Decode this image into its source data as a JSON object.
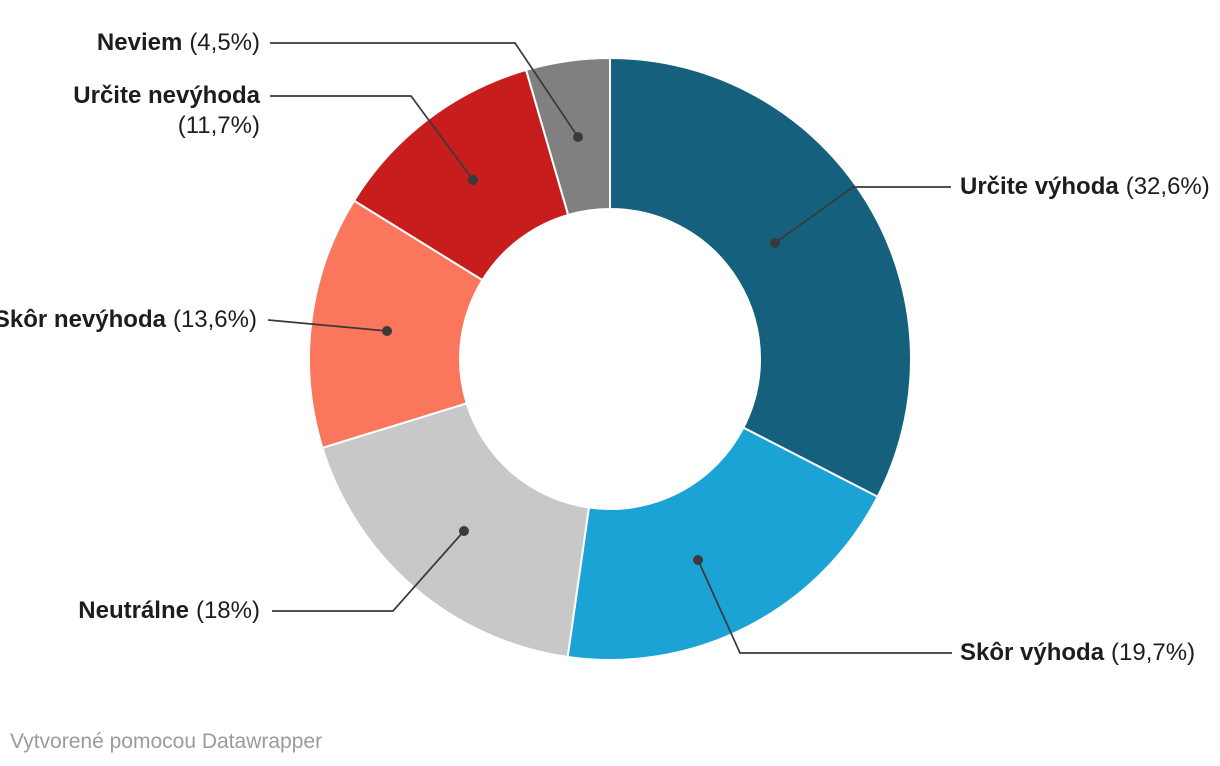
{
  "chart_data": {
    "type": "pie",
    "subtype": "donut",
    "direction": "clockwise",
    "start_angle_deg": 0,
    "inner_radius_ratio": 0.5,
    "unit": "%",
    "labels_position": "outside-with-leader-lines",
    "slices": [
      {
        "label": "Určite výhoda",
        "value": 32.6,
        "display": "(32,6%)",
        "color": "#15617d"
      },
      {
        "label": "Skôr výhoda",
        "value": 19.7,
        "display": "(19,7%)",
        "color": "#1aa3d4"
      },
      {
        "label": "Neutrálne",
        "value": 18,
        "display": "(18%)",
        "color": "#c8c8c8"
      },
      {
        "label": "Skôr nevýhoda",
        "value": 13.6,
        "display": "(13,6%)",
        "color": "#fa765c"
      },
      {
        "label": "Určite nevýhoda",
        "value": 11.7,
        "display": "(11,7%)",
        "color": "#c71e1d"
      },
      {
        "label": "Neviem",
        "value": 4.5,
        "display": "(4,5%)",
        "color": "#808080"
      }
    ]
  },
  "footer": {
    "credit": "Vytvorené pomocou Datawrapper"
  },
  "colors": {
    "background": "#ffffff",
    "leader_line": "#3a3a3a",
    "leader_dot": "#3a3a3a",
    "slice_gap_stroke": "#ffffff",
    "label_text": "#1d1d1d",
    "credit_text": "#9b9b9b"
  }
}
